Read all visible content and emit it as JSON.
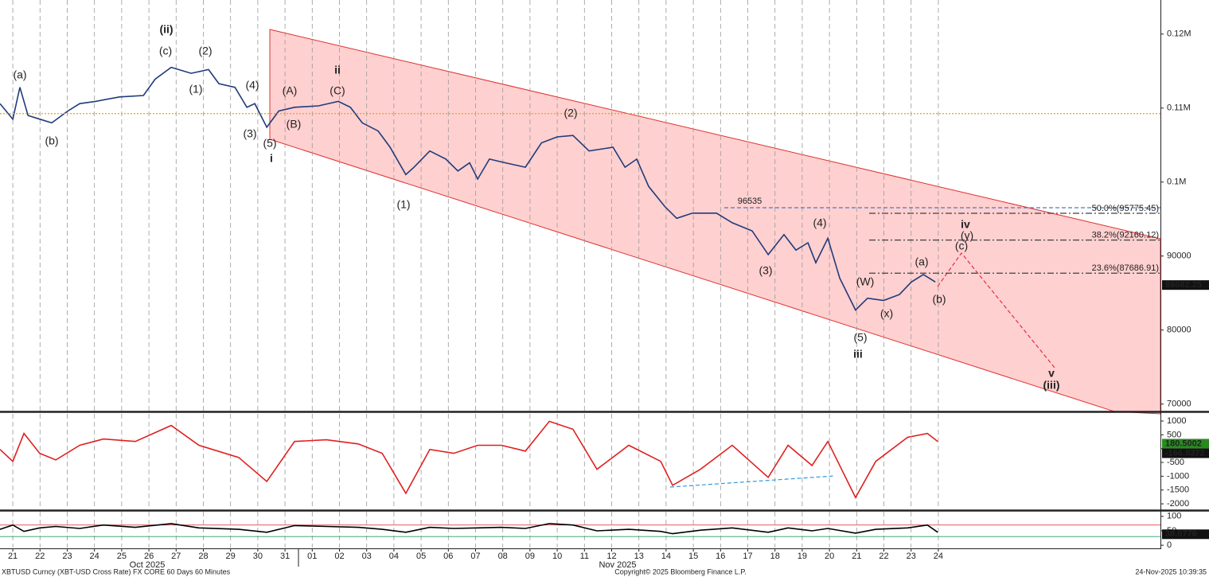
{
  "chart_data": [
    {
      "type": "line",
      "x": [
        -0.47,
        0,
        0.26,
        0.56,
        0.99,
        1.43,
        2.02,
        2.46,
        3.04,
        3.92,
        4.8,
        5.23,
        5.82,
        6.55,
        7.19,
        7.57,
        8.16,
        8.6,
        8.89,
        9.33,
        9.77,
        10.35,
        11.23,
        11.96,
        12.4,
        12.84,
        13.42,
        13.86,
        14.44,
        14.74,
        15.32,
        15.91,
        16.35,
        16.78,
        17.08,
        17.51,
        18.1,
        18.83,
        19.42,
        20,
        20.58,
        21.17,
        22.05,
        22.49,
        22.92,
        23.36,
        23.95,
        24.39,
        24.97,
        25.85,
        26.43,
        27.16,
        27.75,
        28.33,
        28.77,
        29.21,
        29.5,
        29.94,
        30.38,
        30.96,
        31.4,
        31.99,
        32.57,
        33.01,
        33.45,
        33.89
      ],
      "series": [
        {
          "color": "#1f3b7a",
          "values": [
            110600,
            108500,
            112800,
            109000,
            108500,
            108000,
            109600,
            110600,
            110900,
            111500,
            111700,
            113900,
            115500,
            114700,
            115200,
            113300,
            112800,
            110100,
            110600,
            107400,
            109600,
            110100,
            110300,
            110900,
            110100,
            108000,
            106900,
            104700,
            101000,
            102000,
            104200,
            103100,
            101500,
            102600,
            100400,
            103100,
            102600,
            102000,
            105300,
            106100,
            106300,
            104200,
            104700,
            102000,
            103100,
            99400,
            96700,
            95100,
            95800,
            95800,
            94500,
            93400,
            90200,
            92900,
            90800,
            91800,
            89100,
            92400,
            87000,
            82700,
            84300,
            84000,
            84800,
            86500,
            87500,
            86500
          ]
        }
      ],
      "xlim": [
        -0.47,
        42.16
      ],
      "xticks": [
        {
          "value": 0,
          "label": "21"
        },
        {
          "value": 1,
          "label": "22"
        },
        {
          "value": 2,
          "label": "23"
        },
        {
          "value": 3,
          "label": "24"
        },
        {
          "value": 4,
          "label": "25"
        },
        {
          "value": 5,
          "label": "26"
        },
        {
          "value": 6,
          "label": "27"
        },
        {
          "value": 7,
          "label": "28"
        },
        {
          "value": 8,
          "label": "29"
        },
        {
          "value": 9,
          "label": "30"
        },
        {
          "value": 10,
          "label": "31"
        },
        {
          "value": 11,
          "label": "01"
        },
        {
          "value": 12,
          "label": "02"
        },
        {
          "value": 13,
          "label": "03"
        },
        {
          "value": 14,
          "label": "04"
        },
        {
          "value": 15,
          "label": "05"
        },
        {
          "value": 16,
          "label": "06"
        },
        {
          "value": 17,
          "label": "07"
        },
        {
          "value": 18,
          "label": "08"
        },
        {
          "value": 19,
          "label": "09"
        },
        {
          "value": 20,
          "label": "10"
        },
        {
          "value": 21,
          "label": "11"
        },
        {
          "value": 22,
          "label": "12"
        },
        {
          "value": 23,
          "label": "13"
        },
        {
          "value": 24,
          "label": "14"
        },
        {
          "value": 25,
          "label": "15"
        },
        {
          "value": 26,
          "label": "16"
        },
        {
          "value": 27,
          "label": "17"
        },
        {
          "value": 28,
          "label": "18"
        },
        {
          "value": 29,
          "label": "19"
        },
        {
          "value": 30,
          "label": "20"
        },
        {
          "value": 31,
          "label": "21"
        },
        {
          "value": 32,
          "label": "22"
        },
        {
          "value": 33,
          "label": "23"
        },
        {
          "value": 34,
          "label": "24"
        }
      ],
      "month_labels": [
        "Oct 2025",
        "Nov 2025"
      ],
      "ylim": [
        69000,
        124600
      ],
      "yticks": [
        {
          "value": 120000,
          "label": "0.12M"
        },
        {
          "value": 110000,
          "label": "0.11M"
        },
        {
          "value": 100000,
          "label": "0.1M"
        },
        90000,
        80000,
        70000
      ],
      "grid": true,
      "levels": [
        {
          "value": 109250,
          "color": "#f0a000",
          "style": "dotted"
        },
        {
          "value": 96535,
          "color": "#4a7ac0",
          "style": "dashed"
        },
        {
          "value": 95775.45,
          "label": "50.0%(95775.45)",
          "color": "#404040",
          "style": "dashdot"
        },
        {
          "value": 92160.12,
          "label": "38.2%(92160.12)",
          "color": "#404040",
          "style": "dashdot"
        },
        {
          "value": 87686.91,
          "label": "23.6%(87686.91)",
          "color": "#404040",
          "style": "dashdot"
        }
      ],
      "annotations": [
        {
          "text": "(a)",
          "color": "#555555"
        },
        {
          "text": "(b)",
          "color": "#555555"
        },
        {
          "text": "(c)",
          "color": "#555555"
        },
        {
          "text": "(ii)",
          "color": "#9b1b5a"
        },
        {
          "text": "(2)",
          "color": "#5a8a00"
        },
        {
          "text": "(1)",
          "color": "#5a8a00"
        },
        {
          "text": "(4)",
          "color": "#5a8a00"
        },
        {
          "text": "(3)",
          "color": "#5a8a00"
        },
        {
          "text": "(5)",
          "color": "#5a8a00"
        },
        {
          "text": "i",
          "color": "#404040"
        },
        {
          "text": "(A)",
          "color": "#9a8a00"
        },
        {
          "text": "ii",
          "color": "#404040"
        },
        {
          "text": "(C)",
          "color": "#9a8a00"
        },
        {
          "text": "(B)",
          "color": "#9a8a00"
        },
        {
          "text": "(1)",
          "color": "#5a8a00"
        },
        {
          "text": "(2)",
          "color": "#5a8a00"
        },
        {
          "text": "(3)",
          "color": "#9a8a00"
        },
        {
          "text": "(4)",
          "color": "#9a8a00"
        },
        {
          "text": "(W)",
          "color": "#5a8a00"
        },
        {
          "text": "(x)",
          "color": "#9a8a00"
        },
        {
          "text": "(5)",
          "color": "#5a8a00"
        },
        {
          "text": "iii",
          "color": "#404040"
        },
        {
          "text": "(a)",
          "color": "#d02020"
        },
        {
          "text": "(b)",
          "color": "#d02020"
        },
        {
          "text": "(c)",
          "color": "#d02020"
        },
        {
          "text": "(y)",
          "color": "#9a8a00"
        },
        {
          "text": "iv",
          "color": "#404040"
        },
        {
          "text": "v",
          "color": "#404040"
        },
        {
          "text": "(iii)",
          "color": "#9b1b5a"
        }
      ],
      "last_value": 86082.25
    },
    {
      "type": "line",
      "x": [
        -0.47,
        0,
        0.41,
        0.99,
        1.58,
        2.46,
        3.33,
        4.5,
        5.82,
        6.84,
        8.3,
        9.33,
        10.35,
        11.52,
        12.69,
        13.57,
        14.44,
        15.32,
        16.2,
        17.08,
        17.95,
        18.83,
        19.71,
        20.58,
        21.46,
        22.63,
        23.8,
        24.24,
        25.26,
        26.43,
        27.75,
        28.48,
        29.36,
        29.94,
        30.96,
        31.7,
        32.87,
        33.6,
        33.98
      ],
      "series": [
        {
          "color": "#e02020",
          "values": [
            -30,
            -460,
            550,
            -170,
            -410,
            120,
            350,
            260,
            840,
            120,
            -320,
            -1190,
            260,
            320,
            170,
            -170,
            -1620,
            -30,
            -170,
            120,
            120,
            -90,
            990,
            700,
            -750,
            120,
            -460,
            -1330,
            -750,
            120,
            -1040,
            120,
            -610,
            260,
            -1770,
            -460,
            410,
            550,
            260
          ]
        }
      ],
      "ylim": [
        -2200,
        1260
      ],
      "yticks": [
        1000,
        500,
        0,
        -500,
        -1000,
        -1500,
        -2000
      ],
      "last_values": [
        180.5002,
        -166.8372
      ]
    },
    {
      "type": "line",
      "x": [
        -0.47,
        0,
        0.41,
        0.99,
        1.58,
        2.46,
        3.33,
        4.5,
        5.82,
        6.84,
        8.3,
        9.33,
        10.35,
        11.52,
        12.69,
        13.57,
        14.44,
        15.32,
        16.2,
        17.08,
        17.95,
        18.83,
        19.71,
        20.58,
        21.46,
        22.63,
        23.8,
        24.24,
        25.26,
        26.43,
        27.75,
        28.48,
        29.36,
        29.94,
        30.96,
        31.7,
        32.87,
        33.6,
        33.98
      ],
      "series": [
        {
          "color": "#000000",
          "values": [
            55,
            70,
            48,
            60,
            65,
            58,
            70,
            62,
            75,
            60,
            55,
            45,
            68,
            65,
            62,
            55,
            45,
            62,
            58,
            60,
            62,
            58,
            75,
            70,
            50,
            55,
            48,
            40,
            52,
            60,
            45,
            60,
            50,
            58,
            42,
            55,
            60,
            70,
            45
          ]
        }
      ],
      "ylim": [
        -8,
        116
      ],
      "yticks": [
        100,
        50,
        0
      ],
      "reference_lines": [
        {
          "value": 70,
          "color": "#e04040"
        },
        {
          "value": 30,
          "color": "#20a060"
        }
      ],
      "last_value": 38.0776
    }
  ],
  "footer": {
    "source": "XBTUSD Curncy (XBT-USD Cross Rate) FX CORE 60 Days 60 Minutes",
    "copyright": "Copyright© 2025 Bloomberg Finance L.P.",
    "timestamp": "24-Nov-2025 10:39:35"
  }
}
